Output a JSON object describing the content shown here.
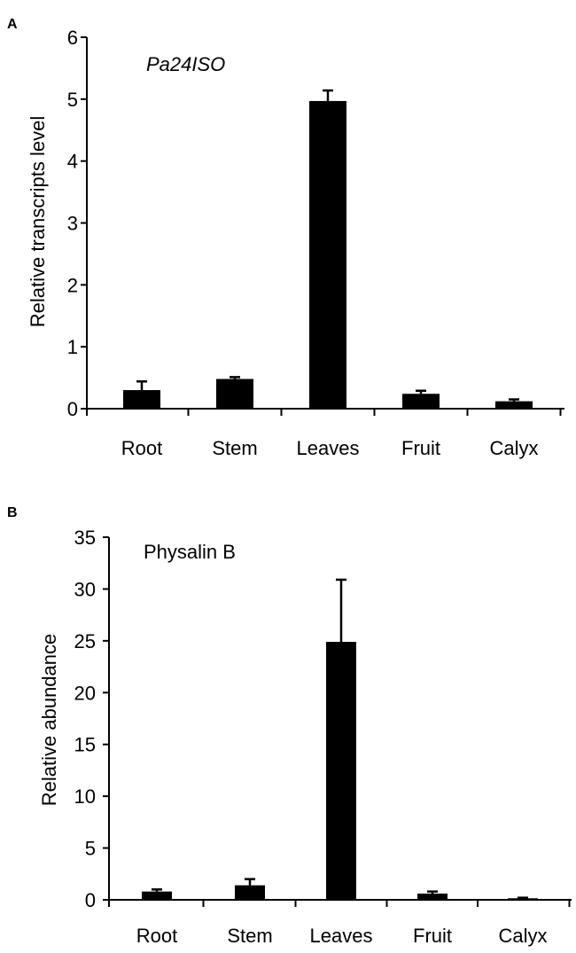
{
  "chart_data": [
    {
      "panel_label": "A",
      "type": "bar",
      "title": "Pa24ISO",
      "title_italic": true,
      "xlabel": "",
      "ylabel": "Relative transcripts level",
      "categories": [
        "Root",
        "Stem",
        "Leaves",
        "Fruit",
        "Calyx"
      ],
      "values": [
        0.3,
        0.48,
        4.97,
        0.24,
        0.12
      ],
      "errors": [
        0.14,
        0.03,
        0.17,
        0.05,
        0.03
      ],
      "ylim": [
        0,
        6
      ],
      "yticks": [
        "0",
        "1",
        "2",
        "3",
        "4",
        "5",
        "6"
      ],
      "bar_color": "#000000",
      "grid": false
    },
    {
      "panel_label": "B",
      "type": "bar",
      "title": "Physalin B",
      "title_italic": false,
      "xlabel": "",
      "ylabel": "Relative abundance",
      "categories": [
        "Root",
        "Stem",
        "Leaves",
        "Fruit",
        "Calyx"
      ],
      "values": [
        0.8,
        1.4,
        24.9,
        0.6,
        0.15
      ],
      "errors": [
        0.2,
        0.6,
        6.0,
        0.2,
        0.05
      ],
      "ylim": [
        0,
        35
      ],
      "yticks": [
        "0",
        "5",
        "10",
        "15",
        "20",
        "25",
        "30",
        "35"
      ],
      "bar_color": "#000000",
      "grid": false
    }
  ]
}
